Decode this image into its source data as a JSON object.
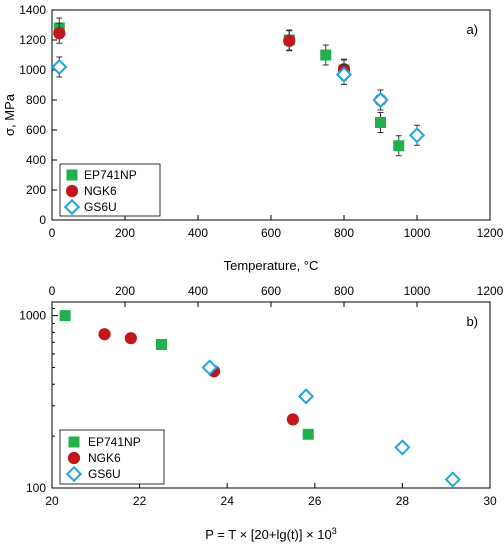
{
  "chart_data": [
    {
      "type": "scatter",
      "panel_label": "a)",
      "xlabel": "Temperature, °C",
      "ylabel": "σ, MPa",
      "xlim": [
        0,
        1200
      ],
      "ylim": [
        0,
        1400
      ],
      "xticks": [
        0,
        200,
        400,
        600,
        800,
        1000,
        1200
      ],
      "yticks": [
        0,
        200,
        400,
        600,
        800,
        1000,
        1200,
        1400
      ],
      "grid": false,
      "error_bars": true,
      "legend_position": "bottom-left",
      "series": [
        {
          "name": "EP741NP",
          "marker": "filled-square",
          "color": "#22b04c",
          "points": [
            [
              20,
              1280
            ],
            [
              650,
              1200
            ],
            [
              750,
              1100
            ],
            [
              800,
              1000
            ],
            [
              900,
              650
            ],
            [
              950,
              495
            ]
          ]
        },
        {
          "name": "NGK6",
          "marker": "filled-circle",
          "color": "#c0161c",
          "points": [
            [
              20,
              1245
            ],
            [
              650,
              1195
            ],
            [
              800,
              1005
            ],
            [
              900,
              800
            ]
          ]
        },
        {
          "name": "GS6U",
          "marker": "open-diamond",
          "color": "#1ea6e0",
          "points": [
            [
              20,
              1020
            ],
            [
              800,
              970
            ],
            [
              900,
              800
            ],
            [
              1000,
              565
            ]
          ]
        }
      ]
    },
    {
      "type": "scatter",
      "panel_label": "b)",
      "xlabel": "P = T × [20+lg(t)] × 10",
      "xlabel_superscript": "3",
      "x_scale": "linear",
      "y_scale": "log",
      "xlim": [
        20,
        30
      ],
      "ylim": [
        100,
        1200
      ],
      "xticks": [
        20,
        22,
        24,
        26,
        28,
        30
      ],
      "yticks": [
        100,
        1000
      ],
      "top_axis_ticks": [
        0,
        200,
        400,
        600,
        800,
        1000,
        1200
      ],
      "grid": false,
      "legend_position": "bottom-left",
      "series": [
        {
          "name": "EP741NP",
          "marker": "filled-square",
          "color": "#22b04c",
          "points": [
            [
              20.3,
              1000
            ],
            [
              22.5,
              680
            ],
            [
              25.85,
              205
            ]
          ]
        },
        {
          "name": "NGK6",
          "marker": "filled-circle",
          "color": "#c0161c",
          "points": [
            [
              21.2,
              780
            ],
            [
              21.8,
              740
            ],
            [
              23.7,
              475
            ],
            [
              25.5,
              250
            ]
          ]
        },
        {
          "name": "GS6U",
          "marker": "open-diamond",
          "color": "#1ea6e0",
          "points": [
            [
              23.6,
              500
            ],
            [
              25.8,
              340
            ],
            [
              28.0,
              172
            ],
            [
              29.15,
              112
            ]
          ]
        }
      ]
    }
  ]
}
